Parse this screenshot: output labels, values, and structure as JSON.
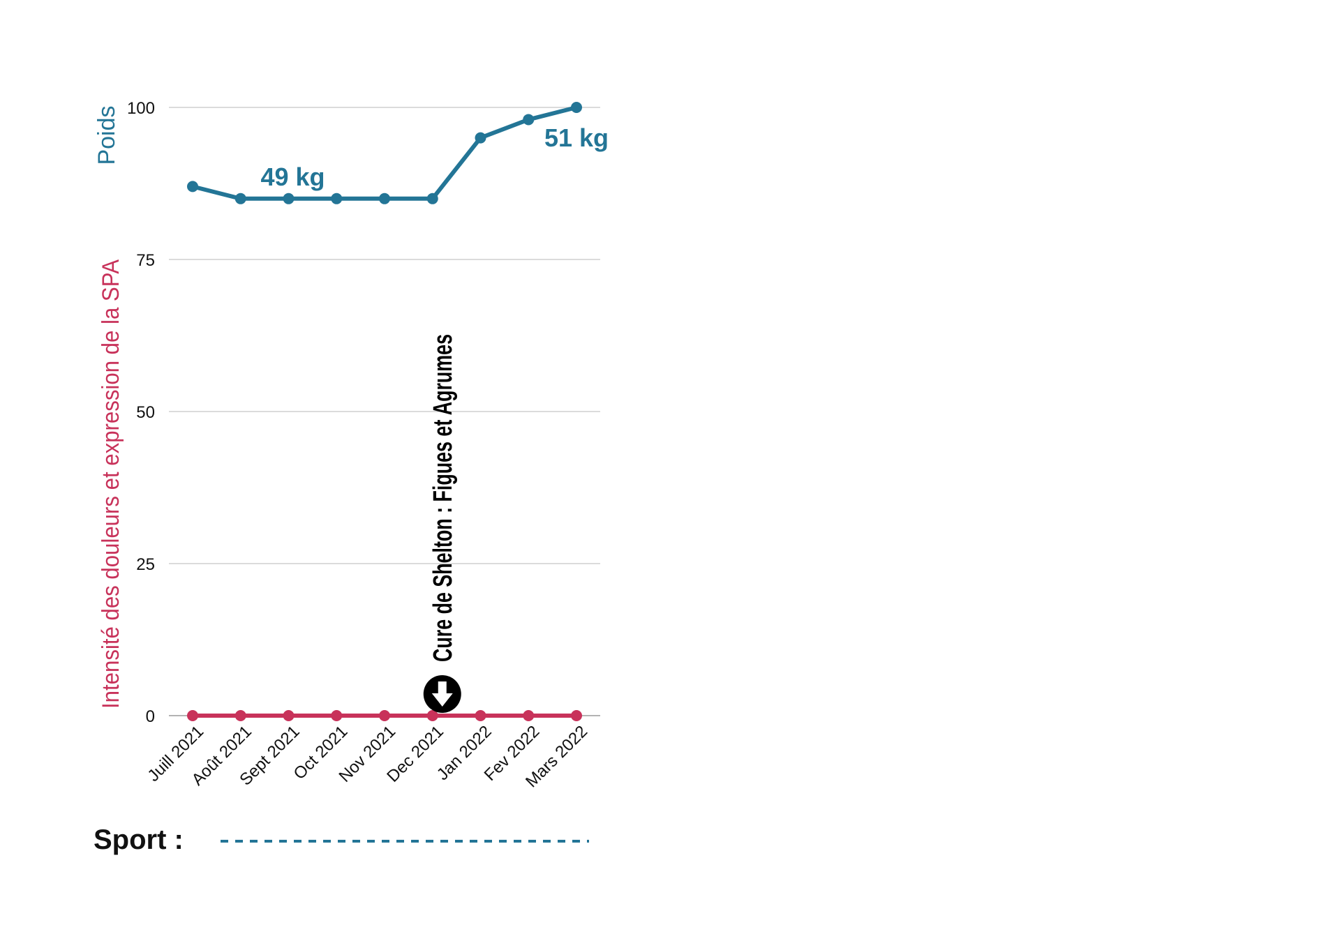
{
  "chart_data": {
    "type": "line",
    "categories": [
      "Juill 2021",
      "Août 2021",
      "Sept 2021",
      "Oct 2021",
      "Nov 2021",
      "Dec 2021",
      "Jan 2022",
      "Fev 2022",
      "Mars 2022"
    ],
    "series": [
      {
        "name": "Poids",
        "color": "#237596",
        "values": [
          87,
          85,
          85,
          85,
          85,
          85,
          95,
          98,
          100
        ]
      },
      {
        "name": "Intensité des douleurs et expression de la SPA",
        "color": "#C8325A",
        "values": [
          0,
          0,
          0,
          0,
          0,
          0,
          0,
          0,
          0
        ]
      }
    ],
    "y_ticks": [
      0,
      25,
      50,
      75,
      100
    ],
    "ylim": [
      0,
      100
    ],
    "grid": true,
    "data_labels": [
      {
        "text": "49 kg",
        "series": "Poids",
        "category": "Sept 2021"
      },
      {
        "text": "51 kg",
        "series": "Poids",
        "category": "Mars 2022"
      }
    ],
    "event": {
      "label": "Cure de Shelton : Figues et Agrumes",
      "category": "Dec 2021",
      "icon": "down-arrow-circle-icon"
    }
  },
  "sport": {
    "label": "Sport :",
    "line_color": "#237596"
  }
}
